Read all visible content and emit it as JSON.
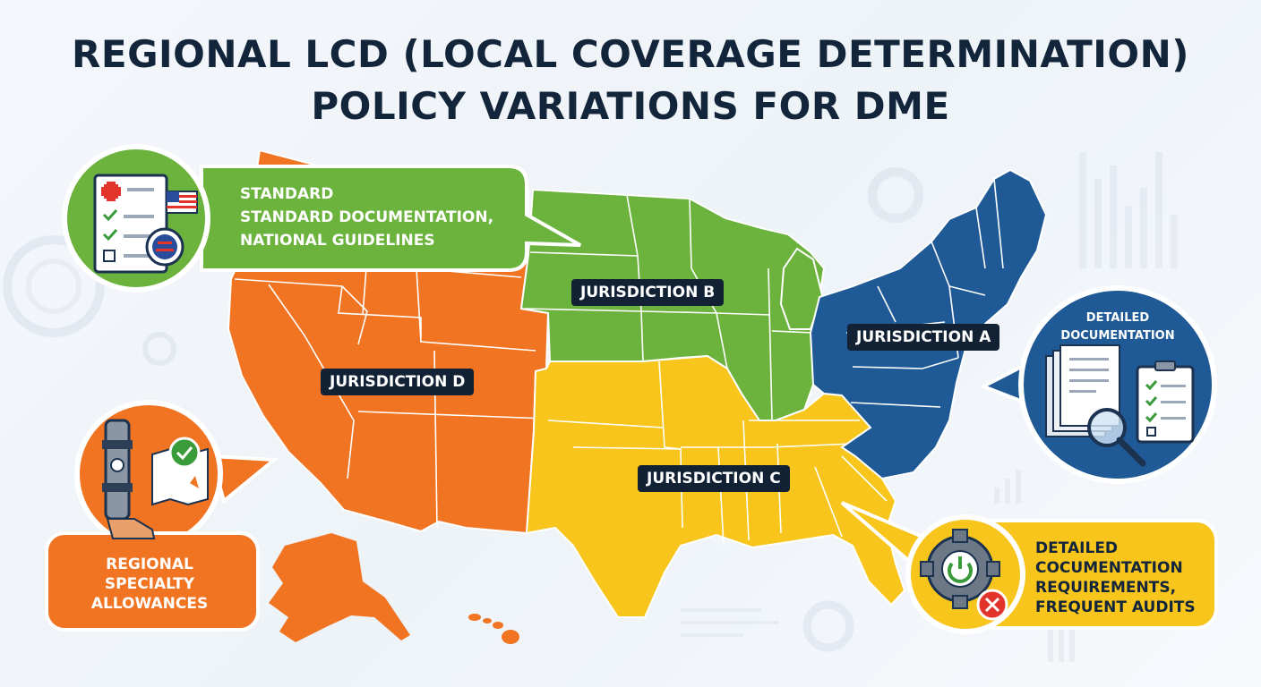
{
  "title": {
    "line1": "REGIONAL LCD (LOCAL COVERAGE DETERMINATION)",
    "line2": "POLICY VARIATIONS FOR DME"
  },
  "colors": {
    "jurisdiction_a": "#1f5a96",
    "jurisdiction_b": "#6cb33e",
    "jurisdiction_c": "#f7c51c",
    "jurisdiction_d": "#f07422",
    "label_bg": "#122133",
    "title": "#13253a"
  },
  "jurisdictions": {
    "a": "JURISDICTION A",
    "b": "JURISDICTION B",
    "c": "JURISDICTION C",
    "d": "JURISDICTION D"
  },
  "callouts": {
    "standard": {
      "lines": [
        "STANDARD",
        "STANDARD DOCUMENTATION,",
        "NATIONAL GUIDELINES"
      ],
      "icon": "checklist-flag-icon"
    },
    "regional": {
      "lines": [
        "REGIONAL",
        "SPECIALTY",
        "ALLOWANCES"
      ],
      "icon": "leg-brace-map-icon"
    },
    "detailed_a": {
      "lines": [
        "DETAILED",
        "DOCUMENTATION"
      ],
      "icon": "documents-magnifier-icon"
    },
    "detailed_c": {
      "lines": [
        "DETAILED",
        "COCUMENTATION",
        "REQUIREMENTS,",
        "FREQUENT AUDITS"
      ],
      "icon": "gear-error-icon"
    }
  }
}
